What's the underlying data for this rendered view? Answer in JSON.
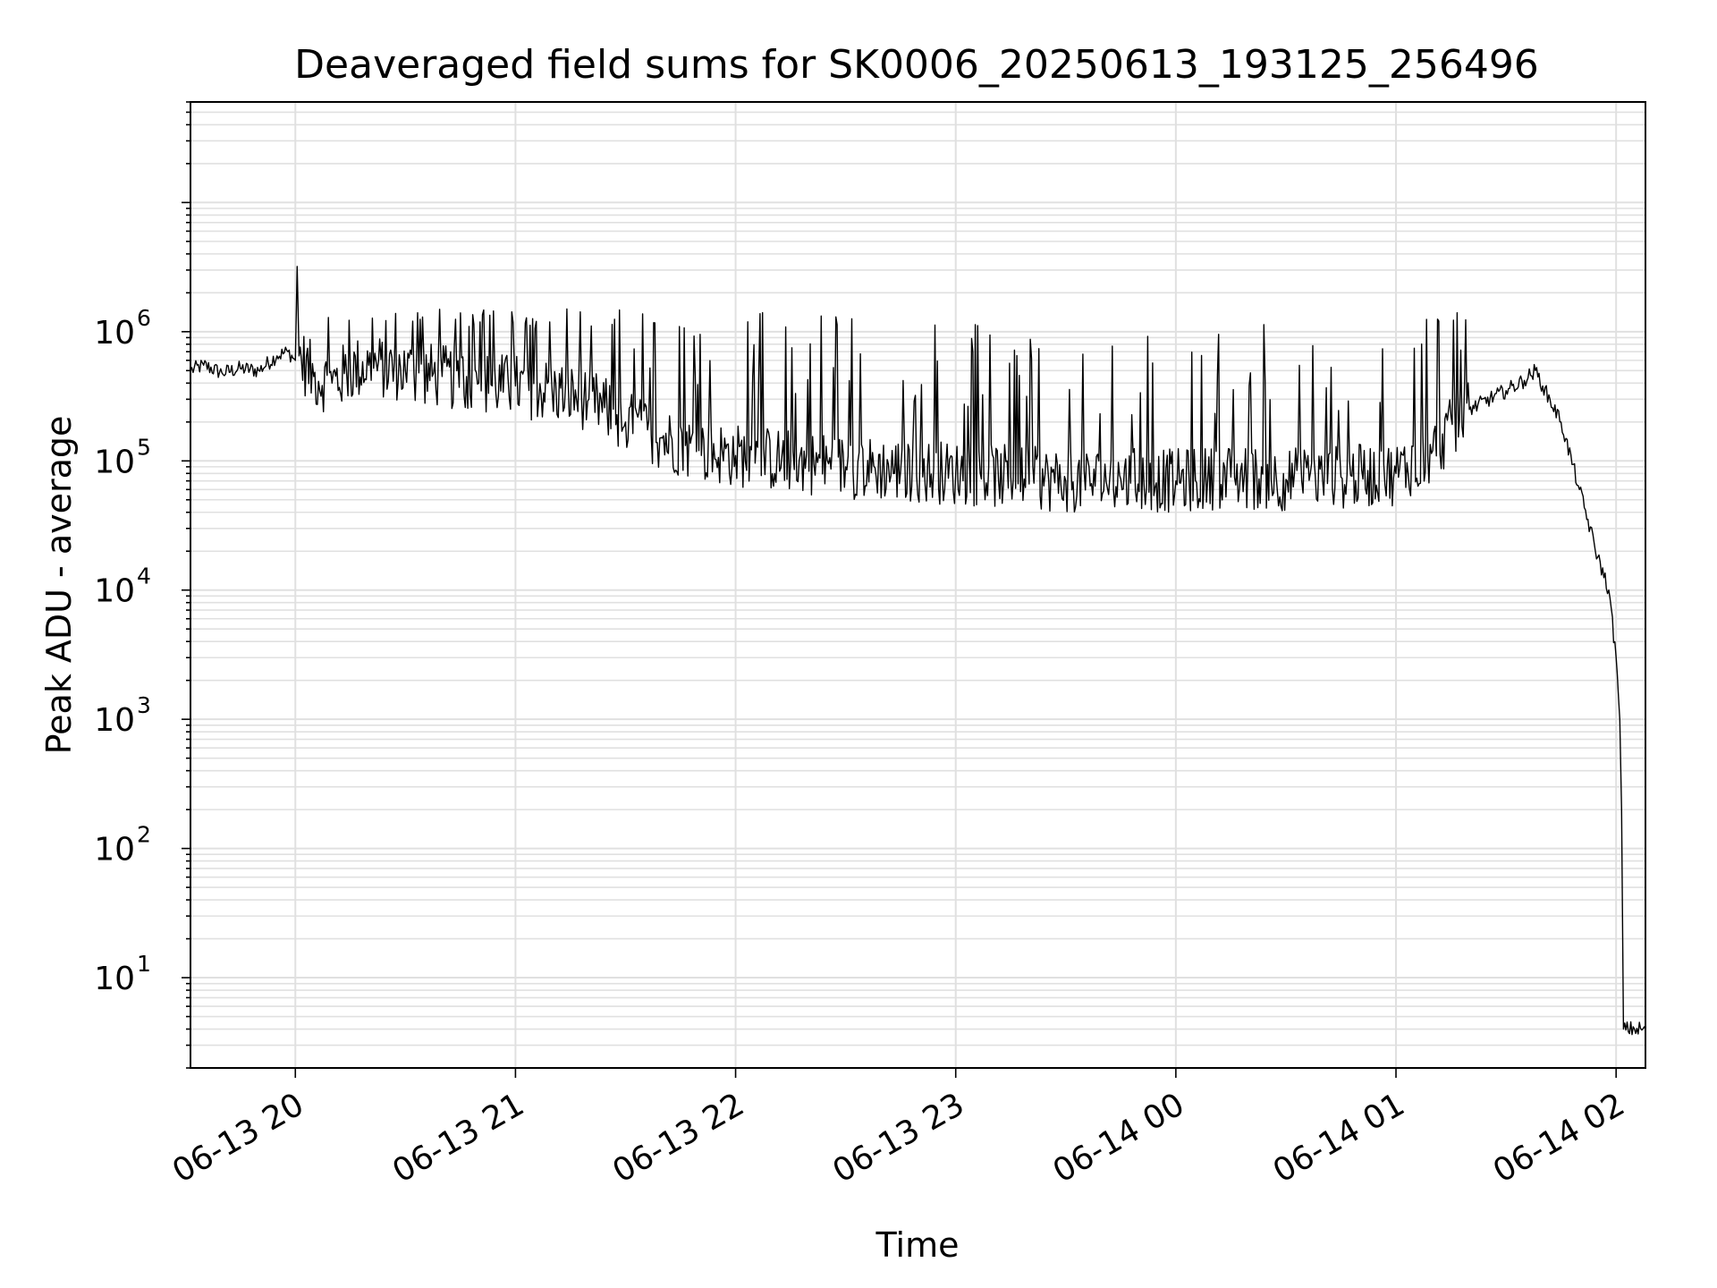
{
  "chart_data": {
    "type": "line",
    "title": "Deaveraged field sums for SK0006_20250613_193125_256496",
    "xlabel": "Time",
    "ylabel": "Peak ADU - average",
    "yscale": "log",
    "ylim": [
      2,
      60000000
    ],
    "xlim": [
      "2025-06-13 19:31:25",
      "2025-06-14 02:08:00"
    ],
    "grid": true,
    "line_color": "#000000",
    "x_ticks": [
      "06-13 20",
      "06-13 21",
      "06-13 22",
      "06-13 23",
      "06-14 00",
      "06-14 01",
      "06-14 02"
    ],
    "y_ticks": [
      {
        "base": "10",
        "exp": "1"
      },
      {
        "base": "10",
        "exp": "2"
      },
      {
        "base": "10",
        "exp": "3"
      },
      {
        "base": "10",
        "exp": "4"
      },
      {
        "base": "10",
        "exp": "5"
      },
      {
        "base": "10",
        "exp": "6"
      }
    ],
    "series": [
      {
        "x": [
          "2025-06-13 19:31:25",
          "2025-06-13 19:35:00",
          "2025-06-13 19:40:00",
          "2025-06-13 19:45:00",
          "2025-06-13 19:50:00",
          "2025-06-13 19:55:00",
          "2025-06-13 19:58:00",
          "2025-06-13 20:00:00",
          "2025-06-13 20:00:30",
          "2025-06-13 20:01:00",
          "2025-06-13 20:05:00",
          "2025-06-13 20:10:00",
          "2025-06-13 20:15:00",
          "2025-06-13 20:20:00",
          "2025-06-13 20:30:00",
          "2025-06-13 20:40:00",
          "2025-06-13 20:50:00",
          "2025-06-13 21:00:00",
          "2025-06-13 21:10:00",
          "2025-06-13 21:20:00",
          "2025-06-13 21:30:00",
          "2025-06-13 21:40:00",
          "2025-06-13 21:50:00",
          "2025-06-13 22:00:00",
          "2025-06-13 22:15:00",
          "2025-06-13 22:30:00",
          "2025-06-13 22:45:00",
          "2025-06-13 23:00:00",
          "2025-06-13 23:15:00",
          "2025-06-13 23:30:00",
          "2025-06-13 23:45:00",
          "2025-06-14 00:00:00",
          "2025-06-14 00:15:00",
          "2025-06-14 00:30:00",
          "2025-06-14 00:45:00",
          "2025-06-14 01:00:00",
          "2025-06-14 01:10:00",
          "2025-06-14 01:20:00",
          "2025-06-14 01:30:00",
          "2025-06-14 01:35:00",
          "2025-06-14 01:38:00",
          "2025-06-14 01:40:00",
          "2025-06-14 01:45:00",
          "2025-06-14 01:50:00",
          "2025-06-14 01:55:00",
          "2025-06-14 01:58:00",
          "2025-06-14 02:00:00",
          "2025-06-14 02:01:00",
          "2025-06-14 02:01:30",
          "2025-06-14 02:02:00",
          "2025-06-14 02:05:00",
          "2025-06-14 02:08:00"
        ],
        "y": [
          500000,
          550000,
          480000,
          520000,
          500000,
          650000,
          700000,
          600000,
          3200000,
          650000,
          450000,
          400000,
          500000,
          550000,
          500000,
          450000,
          400000,
          380000,
          350000,
          300000,
          200000,
          150000,
          120000,
          110000,
          100000,
          90000,
          85000,
          80000,
          75000,
          70000,
          72000,
          70000,
          75000,
          72000,
          75000,
          80000,
          120000,
          250000,
          350000,
          420000,
          500000,
          380000,
          200000,
          60000,
          18000,
          10000,
          3000,
          1000,
          200,
          4,
          4,
          4
        ]
      }
    ],
    "annotations": []
  }
}
